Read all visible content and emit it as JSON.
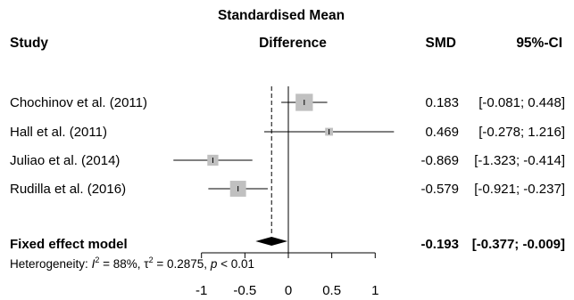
{
  "chart_data": {
    "type": "forest",
    "header": {
      "plot_title_line1": "Standardised Mean",
      "plot_title_line2": "Difference",
      "study_col": "Study",
      "smd_col": "SMD",
      "ci_col": "95%-CI"
    },
    "studies": [
      {
        "name": "Chochinov et al. (2011)",
        "smd": 0.183,
        "lower": -0.081,
        "upper": 0.448,
        "smd_text": "0.183",
        "ci_text": "[-0.081;  0.448]",
        "box_weight": 0.95
      },
      {
        "name": "Hall et al. (2011)",
        "smd": 0.469,
        "lower": -0.278,
        "upper": 1.216,
        "smd_text": "0.469",
        "ci_text": "[-0.278;  1.216]",
        "box_weight": 0.2
      },
      {
        "name": "Juliao et al. (2014)",
        "smd": -0.869,
        "lower": -1.323,
        "upper": -0.414,
        "smd_text": "-0.869",
        "ci_text": "[-1.323; -0.414]",
        "box_weight": 0.45
      },
      {
        "name": "Rudilla et al. (2016)",
        "smd": -0.579,
        "lower": -0.921,
        "upper": -0.237,
        "smd_text": "-0.579",
        "ci_text": "[-0.921; -0.237]",
        "box_weight": 0.85
      }
    ],
    "pooled": {
      "name": "Fixed effect model",
      "smd": -0.193,
      "lower": -0.377,
      "upper": -0.009,
      "smd_text": "-0.193",
      "ci_text": "[-0.377; -0.009]"
    },
    "heterogeneity": {
      "prefix": "Heterogeneity: ",
      "i2_symbol": "I",
      "i2_rest": " = 88%, ",
      "tau_symbol": "τ",
      "tau_rest": " = 0.2875, ",
      "p_symbol": "p",
      "p_rest": " < 0.01"
    },
    "x_ticks": [
      -1,
      -0.5,
      0,
      0.5,
      1
    ],
    "x_tick_labels": [
      "-1",
      "-0.5",
      "0",
      "0.5",
      "1"
    ],
    "xlim": [
      -1.323,
      1.216
    ],
    "null_line": 0,
    "colors": {
      "box": "#c0c0c0",
      "line": "#000000",
      "diamond": "#000000"
    }
  }
}
